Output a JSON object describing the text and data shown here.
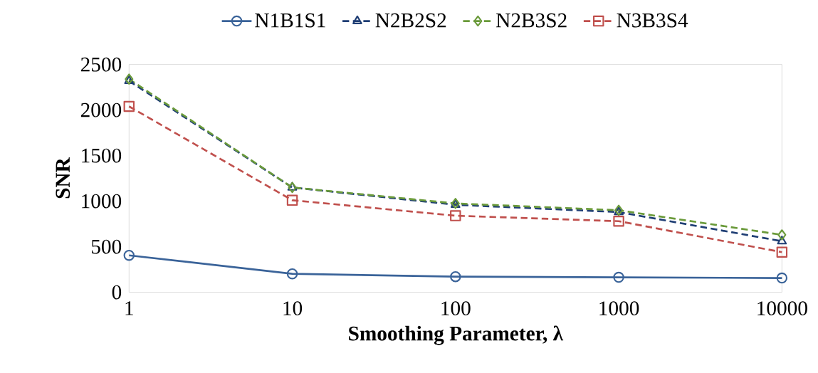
{
  "chart_data": {
    "type": "line",
    "xlabel": "Smoothing Parameter,  λ",
    "ylabel": "SNR",
    "categories": [
      "1",
      "10",
      "100",
      "1000",
      "10000"
    ],
    "series": [
      {
        "name": "N1B1S1",
        "color": "#3a6399",
        "marker": "circle",
        "line_style": "solid",
        "values": [
          405,
          202,
          171,
          164,
          156
        ]
      },
      {
        "name": "N2B2S2",
        "color": "#1f3e74",
        "marker": "triangle",
        "line_style": "dashed",
        "values": [
          2320,
          1150,
          960,
          880,
          560
        ]
      },
      {
        "name": "N2B3S2",
        "color": "#6a9a3a",
        "marker": "diamond",
        "line_style": "dashed",
        "values": [
          2340,
          1150,
          975,
          900,
          630
        ]
      },
      {
        "name": "N3B3S4",
        "color": "#c0504d",
        "marker": "square",
        "line_style": "dashed",
        "values": [
          2040,
          1010,
          840,
          780,
          440
        ]
      }
    ],
    "ylim": [
      0,
      2500
    ],
    "yticks": [
      0,
      500,
      1000,
      1500,
      2000,
      2500
    ],
    "grid": false,
    "legend": "top"
  }
}
